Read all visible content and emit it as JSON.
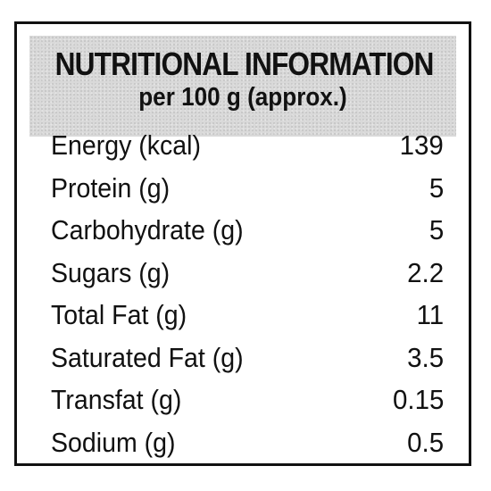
{
  "label": {
    "title": "NUTRITIONAL INFORMATION",
    "subtitle": "per 100 g (approx.)",
    "rows": [
      {
        "name": "Energy (kcal)",
        "value": "139"
      },
      {
        "name": "Protein (g)",
        "value": "5"
      },
      {
        "name": "Carbohydrate (g)",
        "value": "5"
      },
      {
        "name": "Sugars (g)",
        "value": "2.2"
      },
      {
        "name": "Total Fat (g)",
        "value": "11"
      },
      {
        "name": "Saturated Fat (g)",
        "value": "3.5"
      },
      {
        "name": "Transfat (g)",
        "value": "0.15"
      },
      {
        "name": "Sodium (g)",
        "value": "0.5"
      }
    ]
  }
}
